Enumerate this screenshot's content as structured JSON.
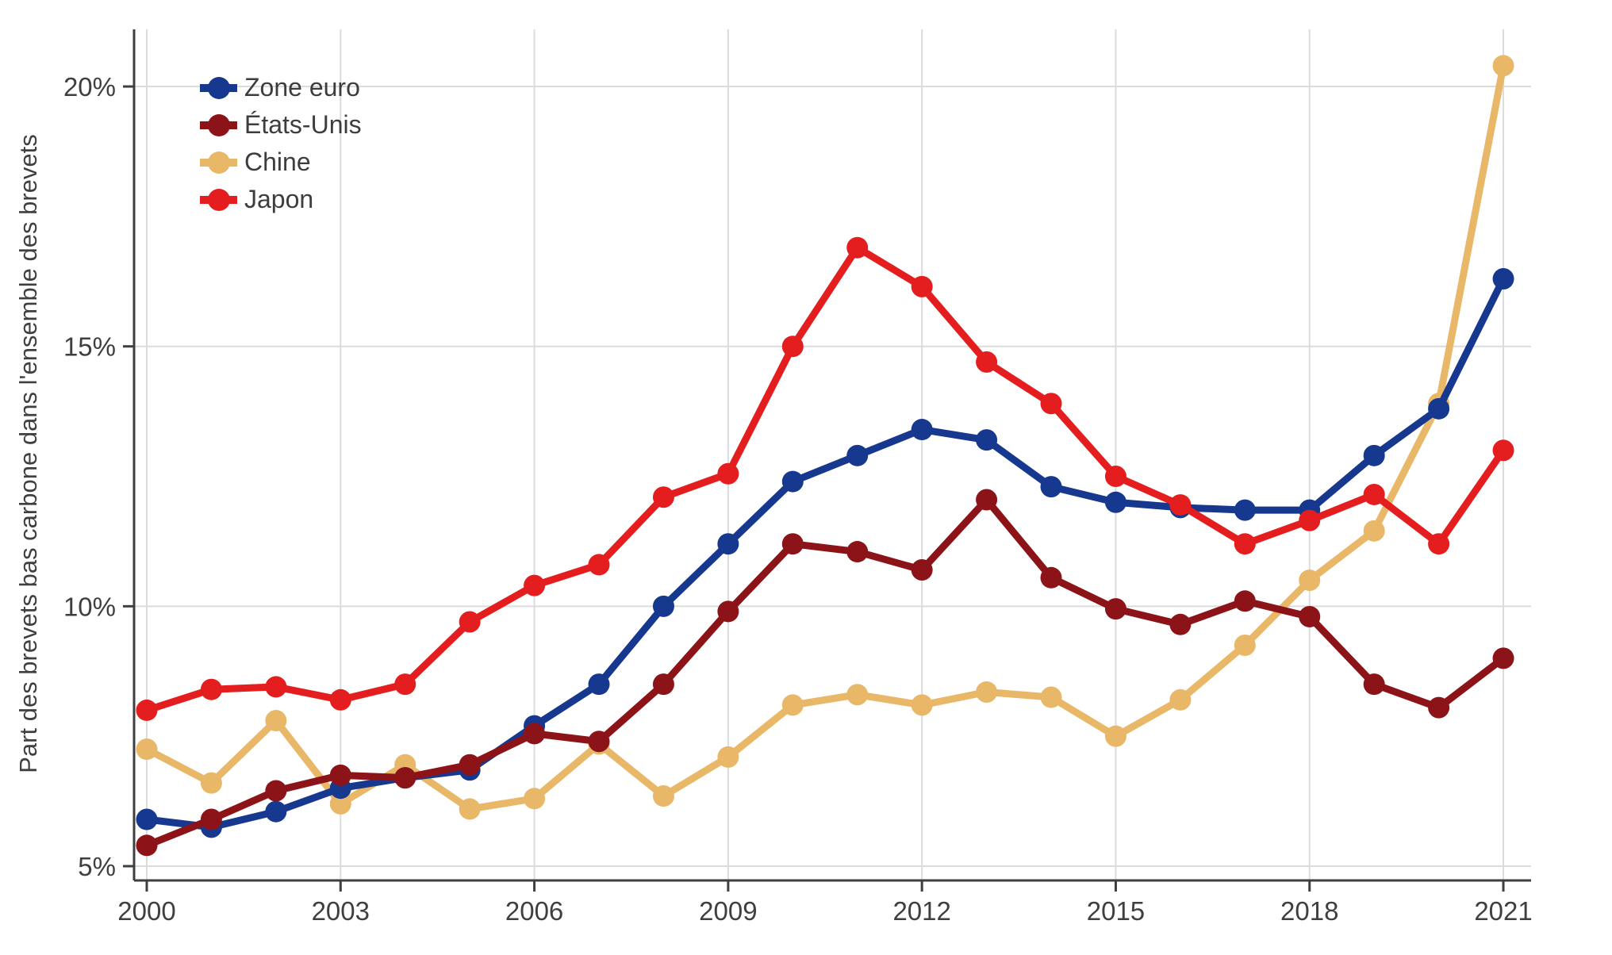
{
  "figure": {
    "background": "#ffffff",
    "text_color": "#3f3f3f",
    "grid_color": "#dcdcdc",
    "axis_color": "#3f3f3f"
  },
  "chart_data": {
    "type": "line",
    "title": "",
    "xlabel": "",
    "ylabel": "Part des brevets bas carbone dans l'ensemble des brevets",
    "x": [
      2000,
      2001,
      2002,
      2003,
      2004,
      2005,
      2006,
      2007,
      2008,
      2009,
      2010,
      2011,
      2012,
      2013,
      2014,
      2015,
      2016,
      2017,
      2018,
      2019,
      2020,
      2021
    ],
    "x_tick_years": [
      2000,
      2003,
      2006,
      2009,
      2012,
      2015,
      2018,
      2021
    ],
    "y_ticks": [
      {
        "value": 5,
        "label": "5%"
      },
      {
        "value": 10,
        "label": "10%"
      },
      {
        "value": 15,
        "label": "15%"
      },
      {
        "value": 20,
        "label": "20%"
      }
    ],
    "ylim": [
      4.7,
      21.3
    ],
    "xlim": [
      2000,
      2021
    ],
    "grid": true,
    "legend_position": "top-left",
    "marker": "circle",
    "series": [
      {
        "name": "Zone euro",
        "color": "#16398f",
        "values": [
          5.9,
          5.75,
          6.05,
          6.5,
          6.7,
          6.85,
          7.7,
          8.5,
          10.0,
          11.2,
          12.4,
          12.9,
          13.4,
          13.2,
          12.3,
          12.0,
          11.9,
          11.85,
          11.85,
          12.9,
          13.8,
          16.3
        ]
      },
      {
        "name": "États-Unis",
        "color": "#8c1418",
        "values": [
          5.4,
          5.9,
          6.45,
          6.75,
          6.7,
          6.95,
          7.55,
          7.4,
          8.5,
          9.9,
          11.2,
          11.05,
          10.7,
          12.05,
          10.55,
          9.95,
          9.65,
          10.1,
          9.8,
          8.5,
          8.05,
          9.0
        ]
      },
      {
        "name": "Chine",
        "color": "#e9b768",
        "values": [
          7.25,
          6.6,
          7.8,
          6.2,
          6.95,
          6.1,
          6.3,
          7.35,
          6.35,
          7.1,
          8.1,
          8.3,
          8.1,
          8.35,
          8.25,
          7.5,
          8.2,
          9.25,
          10.5,
          11.45,
          13.9,
          20.4
        ]
      },
      {
        "name": "Japon",
        "color": "#e41e1e",
        "values": [
          8.0,
          8.4,
          8.45,
          8.2,
          8.5,
          9.7,
          10.4,
          10.8,
          12.1,
          12.55,
          15.0,
          16.9,
          16.15,
          14.7,
          13.9,
          12.5,
          11.95,
          11.2,
          11.65,
          12.15,
          11.2,
          13.0
        ]
      }
    ],
    "draw_order": [
      2,
      0,
      1,
      3
    ]
  }
}
